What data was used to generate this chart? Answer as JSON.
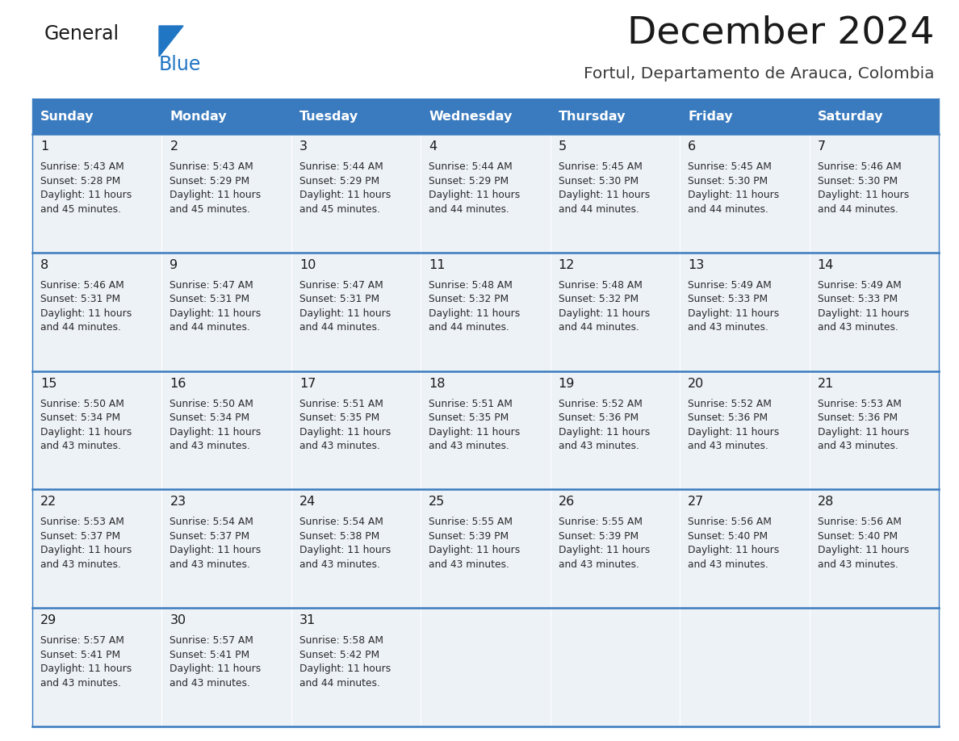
{
  "title": "December 2024",
  "subtitle": "Fortul, Departamento de Arauca, Colombia",
  "header_bg_color": "#3a7bbf",
  "header_text_color": "#ffffff",
  "cell_bg_color": "#edf2f7",
  "border_color": "#3a7bbf",
  "days_of_week": [
    "Sunday",
    "Monday",
    "Tuesday",
    "Wednesday",
    "Thursday",
    "Friday",
    "Saturday"
  ],
  "weeks": [
    [
      {
        "day": 1,
        "sunrise": "5:43 AM",
        "sunset": "5:28 PM",
        "daylight": "11 hours and 45 minutes."
      },
      {
        "day": 2,
        "sunrise": "5:43 AM",
        "sunset": "5:29 PM",
        "daylight": "11 hours and 45 minutes."
      },
      {
        "day": 3,
        "sunrise": "5:44 AM",
        "sunset": "5:29 PM",
        "daylight": "11 hours and 45 minutes."
      },
      {
        "day": 4,
        "sunrise": "5:44 AM",
        "sunset": "5:29 PM",
        "daylight": "11 hours and 44 minutes."
      },
      {
        "day": 5,
        "sunrise": "5:45 AM",
        "sunset": "5:30 PM",
        "daylight": "11 hours and 44 minutes."
      },
      {
        "day": 6,
        "sunrise": "5:45 AM",
        "sunset": "5:30 PM",
        "daylight": "11 hours and 44 minutes."
      },
      {
        "day": 7,
        "sunrise": "5:46 AM",
        "sunset": "5:30 PM",
        "daylight": "11 hours and 44 minutes."
      }
    ],
    [
      {
        "day": 8,
        "sunrise": "5:46 AM",
        "sunset": "5:31 PM",
        "daylight": "11 hours and 44 minutes."
      },
      {
        "day": 9,
        "sunrise": "5:47 AM",
        "sunset": "5:31 PM",
        "daylight": "11 hours and 44 minutes."
      },
      {
        "day": 10,
        "sunrise": "5:47 AM",
        "sunset": "5:31 PM",
        "daylight": "11 hours and 44 minutes."
      },
      {
        "day": 11,
        "sunrise": "5:48 AM",
        "sunset": "5:32 PM",
        "daylight": "11 hours and 44 minutes."
      },
      {
        "day": 12,
        "sunrise": "5:48 AM",
        "sunset": "5:32 PM",
        "daylight": "11 hours and 44 minutes."
      },
      {
        "day": 13,
        "sunrise": "5:49 AM",
        "sunset": "5:33 PM",
        "daylight": "11 hours and 43 minutes."
      },
      {
        "day": 14,
        "sunrise": "5:49 AM",
        "sunset": "5:33 PM",
        "daylight": "11 hours and 43 minutes."
      }
    ],
    [
      {
        "day": 15,
        "sunrise": "5:50 AM",
        "sunset": "5:34 PM",
        "daylight": "11 hours and 43 minutes."
      },
      {
        "day": 16,
        "sunrise": "5:50 AM",
        "sunset": "5:34 PM",
        "daylight": "11 hours and 43 minutes."
      },
      {
        "day": 17,
        "sunrise": "5:51 AM",
        "sunset": "5:35 PM",
        "daylight": "11 hours and 43 minutes."
      },
      {
        "day": 18,
        "sunrise": "5:51 AM",
        "sunset": "5:35 PM",
        "daylight": "11 hours and 43 minutes."
      },
      {
        "day": 19,
        "sunrise": "5:52 AM",
        "sunset": "5:36 PM",
        "daylight": "11 hours and 43 minutes."
      },
      {
        "day": 20,
        "sunrise": "5:52 AM",
        "sunset": "5:36 PM",
        "daylight": "11 hours and 43 minutes."
      },
      {
        "day": 21,
        "sunrise": "5:53 AM",
        "sunset": "5:36 PM",
        "daylight": "11 hours and 43 minutes."
      }
    ],
    [
      {
        "day": 22,
        "sunrise": "5:53 AM",
        "sunset": "5:37 PM",
        "daylight": "11 hours and 43 minutes."
      },
      {
        "day": 23,
        "sunrise": "5:54 AM",
        "sunset": "5:37 PM",
        "daylight": "11 hours and 43 minutes."
      },
      {
        "day": 24,
        "sunrise": "5:54 AM",
        "sunset": "5:38 PM",
        "daylight": "11 hours and 43 minutes."
      },
      {
        "day": 25,
        "sunrise": "5:55 AM",
        "sunset": "5:39 PM",
        "daylight": "11 hours and 43 minutes."
      },
      {
        "day": 26,
        "sunrise": "5:55 AM",
        "sunset": "5:39 PM",
        "daylight": "11 hours and 43 minutes."
      },
      {
        "day": 27,
        "sunrise": "5:56 AM",
        "sunset": "5:40 PM",
        "daylight": "11 hours and 43 minutes."
      },
      {
        "day": 28,
        "sunrise": "5:56 AM",
        "sunset": "5:40 PM",
        "daylight": "11 hours and 43 minutes."
      }
    ],
    [
      {
        "day": 29,
        "sunrise": "5:57 AM",
        "sunset": "5:41 PM",
        "daylight": "11 hours and 43 minutes."
      },
      {
        "day": 30,
        "sunrise": "5:57 AM",
        "sunset": "5:41 PM",
        "daylight": "11 hours and 43 minutes."
      },
      {
        "day": 31,
        "sunrise": "5:58 AM",
        "sunset": "5:42 PM",
        "daylight": "11 hours and 44 minutes."
      },
      null,
      null,
      null,
      null
    ]
  ],
  "logo_color_general": "#1a1a1a",
  "logo_color_blue": "#2176c4",
  "logo_triangle_color": "#2176c4",
  "fig_width": 11.88,
  "fig_height": 9.18,
  "dpi": 100
}
